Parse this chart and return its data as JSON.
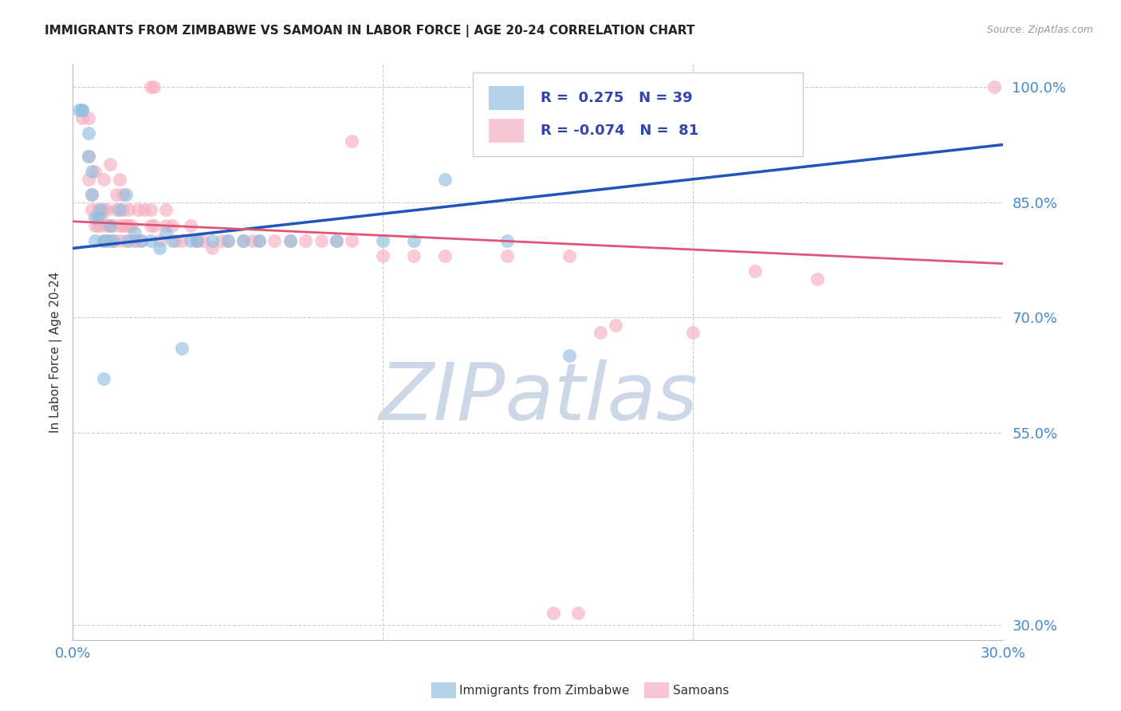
{
  "title": "IMMIGRANTS FROM ZIMBABWE VS SAMOAN IN LABOR FORCE | AGE 20-24 CORRELATION CHART",
  "source": "Source: ZipAtlas.com",
  "ylabel": "In Labor Force | Age 20-24",
  "ytick_vals": [
    1.0,
    0.85,
    0.7,
    0.55,
    0.3
  ],
  "ytick_labels": [
    "100.0%",
    "85.0%",
    "70.0%",
    "55.0%",
    "30.0%"
  ],
  "xtick_vals": [
    0.0,
    0.1,
    0.2,
    0.3
  ],
  "xtick_labels": [
    "0.0%",
    "",
    "",
    "30.0%"
  ],
  "legend_label_blue": "Immigrants from Zimbabwe",
  "legend_label_pink": "Samoans",
  "xlim": [
    0.0,
    0.3
  ],
  "ylim": [
    0.28,
    1.03
  ],
  "blue_scatter_color": "#92bfdf",
  "pink_scatter_color": "#f5afc0",
  "blue_line_color": "#2255bb",
  "pink_line_color": "#e05575",
  "tick_label_color": "#4488cc",
  "title_color": "#222222",
  "ylabel_color": "#333333",
  "source_color": "#999999",
  "grid_color": "#cccccc",
  "legend_text_color": "#3344aa",
  "watermark_color": "#ccd8e8",
  "blue_x": [
    0.002,
    0.003,
    0.003,
    0.005,
    0.005,
    0.006,
    0.006,
    0.007,
    0.007,
    0.008,
    0.009,
    0.01,
    0.01,
    0.011,
    0.012,
    0.013,
    0.015,
    0.017,
    0.018,
    0.02,
    0.022,
    0.025,
    0.028,
    0.03,
    0.032,
    0.035,
    0.038,
    0.04,
    0.045,
    0.05,
    0.055,
    0.06,
    0.07,
    0.085,
    0.1,
    0.11,
    0.12,
    0.14,
    0.16
  ],
  "blue_y": [
    0.97,
    0.97,
    0.97,
    0.94,
    0.91,
    0.89,
    0.86,
    0.83,
    0.8,
    0.83,
    0.84,
    0.8,
    0.62,
    0.8,
    0.82,
    0.8,
    0.84,
    0.86,
    0.8,
    0.81,
    0.8,
    0.8,
    0.79,
    0.81,
    0.8,
    0.66,
    0.8,
    0.8,
    0.8,
    0.8,
    0.8,
    0.8,
    0.8,
    0.8,
    0.8,
    0.8,
    0.88,
    0.8,
    0.65
  ],
  "pink_x": [
    0.003,
    0.005,
    0.005,
    0.006,
    0.006,
    0.007,
    0.008,
    0.008,
    0.009,
    0.009,
    0.01,
    0.01,
    0.01,
    0.011,
    0.011,
    0.012,
    0.012,
    0.013,
    0.013,
    0.014,
    0.014,
    0.015,
    0.015,
    0.016,
    0.016,
    0.016,
    0.017,
    0.017,
    0.018,
    0.018,
    0.019,
    0.02,
    0.021,
    0.022,
    0.023,
    0.025,
    0.025,
    0.026,
    0.028,
    0.03,
    0.032,
    0.033,
    0.035,
    0.038,
    0.04,
    0.042,
    0.045,
    0.048,
    0.05,
    0.055,
    0.058,
    0.06,
    0.065,
    0.07,
    0.075,
    0.08,
    0.085,
    0.09,
    0.1,
    0.11,
    0.12,
    0.14,
    0.16,
    0.17,
    0.175,
    0.2,
    0.22,
    0.24,
    0.155,
    0.163,
    0.005,
    0.025,
    0.026,
    0.09,
    0.007,
    0.012,
    0.015,
    0.02,
    0.03,
    0.04,
    0.297
  ],
  "pink_y": [
    0.96,
    0.91,
    0.88,
    0.86,
    0.84,
    0.89,
    0.82,
    0.84,
    0.82,
    0.83,
    0.84,
    0.8,
    0.88,
    0.82,
    0.84,
    0.82,
    0.9,
    0.8,
    0.82,
    0.84,
    0.86,
    0.88,
    0.8,
    0.82,
    0.84,
    0.86,
    0.8,
    0.82,
    0.84,
    0.82,
    0.82,
    0.8,
    0.84,
    0.8,
    0.84,
    0.82,
    0.84,
    0.82,
    0.8,
    0.84,
    0.82,
    0.8,
    0.8,
    0.82,
    0.8,
    0.8,
    0.79,
    0.8,
    0.8,
    0.8,
    0.8,
    0.8,
    0.8,
    0.8,
    0.8,
    0.8,
    0.8,
    0.8,
    0.78,
    0.78,
    0.78,
    0.78,
    0.78,
    0.68,
    0.69,
    0.68,
    0.76,
    0.75,
    0.315,
    0.315,
    0.96,
    1.0,
    1.0,
    0.93,
    0.82,
    0.8,
    0.82,
    0.8,
    0.82,
    0.8,
    1.0
  ],
  "blue_trend_x": [
    0.0,
    0.3
  ],
  "blue_trend_y": [
    0.79,
    0.925
  ],
  "pink_trend_x": [
    0.0,
    0.3
  ],
  "pink_trend_y": [
    0.825,
    0.77
  ]
}
